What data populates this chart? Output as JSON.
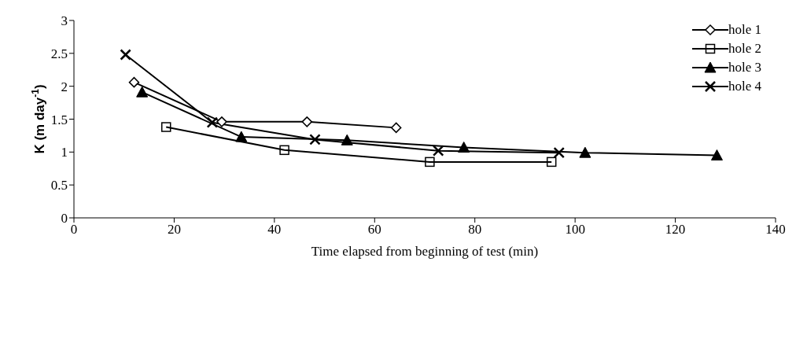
{
  "chart_data": {
    "type": "line",
    "xlabel": "Time elapsed from beginning of test (min)",
    "ylabel": "K (m day$^{-1}$)",
    "xlim": [
      0,
      140
    ],
    "xticks": [
      0,
      20,
      40,
      60,
      80,
      100,
      120,
      140
    ],
    "ylim": [
      0,
      3
    ],
    "yticks": [
      0,
      0.5,
      1,
      1.5,
      2,
      2.5,
      3
    ],
    "grid": false,
    "legend": "top right",
    "series": [
      {
        "name": "hole 1",
        "color": "#000000",
        "marker": "diamond",
        "x": [
          12,
          29.5,
          46.5,
          64.3
        ],
        "values": [
          2.06,
          1.46,
          1.46,
          1.37
        ]
      },
      {
        "name": "hole 2",
        "color": "#000000",
        "marker": "square",
        "x": [
          18.4,
          42,
          71,
          95.3
        ],
        "values": [
          1.38,
          1.03,
          0.85,
          0.85
        ]
      },
      {
        "name": "hole 3",
        "color": "#000000",
        "marker": "triangle",
        "x": [
          13.6,
          33.4,
          54.5,
          77.8,
          102,
          128.3
        ],
        "values": [
          1.91,
          1.23,
          1.18,
          1.07,
          0.99,
          0.95
        ]
      },
      {
        "name": "hole 4",
        "color": "#000000",
        "marker": "cross",
        "x": [
          10.3,
          27.6,
          48.1,
          72.7,
          96.8
        ],
        "values": [
          2.48,
          1.45,
          1.19,
          1.02,
          0.99
        ]
      }
    ]
  }
}
